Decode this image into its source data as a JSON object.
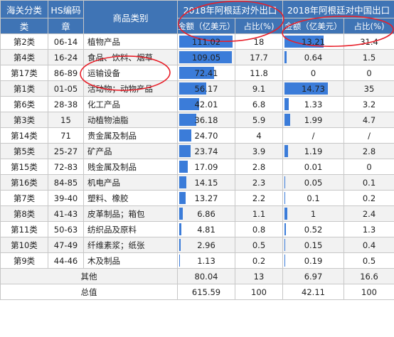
{
  "headers": {
    "category_l1": "海关分类",
    "category_l2": "类",
    "hs_l1": "HS编码",
    "hs_l2": "章",
    "goods": "商品类别",
    "group_export_world": "2018年阿根廷对外出口",
    "group_export_china": "2018年阿根廷对中国出口",
    "amount": "金额（亿美元）",
    "share": "占比(%)"
  },
  "rows": [
    {
      "cls": "第2类",
      "hs": "06-14",
      "goods": "植物产品",
      "world_amount": "111.02",
      "world_val": 111.02,
      "world_share": "18",
      "china_amount": "13.21",
      "china_val": 13.21,
      "china_share": "31.4"
    },
    {
      "cls": "第4类",
      "hs": "16-24",
      "goods": "食品、饮料、烟草",
      "world_amount": "109.05",
      "world_val": 109.05,
      "world_share": "17.7",
      "china_amount": "0.64",
      "china_val": 0.64,
      "china_share": "1.5"
    },
    {
      "cls": "第17类",
      "hs": "86-89",
      "goods": "运输设备",
      "world_amount": "72.41",
      "world_val": 72.41,
      "world_share": "11.8",
      "china_amount": "0",
      "china_val": 0,
      "china_share": "0"
    },
    {
      "cls": "第1类",
      "hs": "01-05",
      "goods": "活动物；动物产品",
      "world_amount": "56.17",
      "world_val": 56.17,
      "world_share": "9.1",
      "china_amount": "14.73",
      "china_val": 14.73,
      "china_share": "35"
    },
    {
      "cls": "第6类",
      "hs": "28-38",
      "goods": "化工产品",
      "world_amount": "42.01",
      "world_val": 42.01,
      "world_share": "6.8",
      "china_amount": "1.33",
      "china_val": 1.33,
      "china_share": "3.2"
    },
    {
      "cls": "第3类",
      "hs": "15",
      "goods": "动植物油脂",
      "world_amount": "36.18",
      "world_val": 36.18,
      "world_share": "5.9",
      "china_amount": "1.99",
      "china_val": 1.99,
      "china_share": "4.7"
    },
    {
      "cls": "第14类",
      "hs": "71",
      "goods": "贵金属及制品",
      "world_amount": "24.70",
      "world_val": 24.7,
      "world_share": "4",
      "china_amount": "/",
      "china_val": 0,
      "china_share": "/"
    },
    {
      "cls": "第5类",
      "hs": "25-27",
      "goods": "矿产品",
      "world_amount": "23.74",
      "world_val": 23.74,
      "world_share": "3.9",
      "china_amount": "1.19",
      "china_val": 1.19,
      "china_share": "2.8"
    },
    {
      "cls": "第15类",
      "hs": "72-83",
      "goods": "贱金属及制品",
      "world_amount": "17.09",
      "world_val": 17.09,
      "world_share": "2.8",
      "china_amount": "0.01",
      "china_val": 0.01,
      "china_share": "0"
    },
    {
      "cls": "第16类",
      "hs": "84-85",
      "goods": "机电产品",
      "world_amount": "14.15",
      "world_val": 14.15,
      "world_share": "2.3",
      "china_amount": "0.05",
      "china_val": 0.05,
      "china_share": "0.1"
    },
    {
      "cls": "第7类",
      "hs": "39-40",
      "goods": "塑料、橡胶",
      "world_amount": "13.27",
      "world_val": 13.27,
      "world_share": "2.2",
      "china_amount": "0.1",
      "china_val": 0.1,
      "china_share": "0.2"
    },
    {
      "cls": "第8类",
      "hs": "41-43",
      "goods": "皮革制品；箱包",
      "world_amount": "6.86",
      "world_val": 6.86,
      "world_share": "1.1",
      "china_amount": "1",
      "china_val": 1,
      "china_share": "2.4"
    },
    {
      "cls": "第11类",
      "hs": "50-63",
      "goods": "纺织品及原料",
      "world_amount": "4.81",
      "world_val": 4.81,
      "world_share": "0.8",
      "china_amount": "0.52",
      "china_val": 0.52,
      "china_share": "1.3"
    },
    {
      "cls": "第10类",
      "hs": "47-49",
      "goods": "纤维素浆；纸张",
      "world_amount": "2.96",
      "world_val": 2.96,
      "world_share": "0.5",
      "china_amount": "0.15",
      "china_val": 0.15,
      "china_share": "0.4"
    },
    {
      "cls": "第9类",
      "hs": "44-46",
      "goods": "木及制品",
      "world_amount": "1.13",
      "world_val": 1.13,
      "world_share": "0.2",
      "china_amount": "0.19",
      "china_val": 0.19,
      "china_share": "0.5"
    }
  ],
  "other": {
    "label": "其他",
    "world_amount": "80.04",
    "world_share": "13",
    "china_amount": "6.97",
    "china_share": "16.6"
  },
  "total": {
    "label": "总值",
    "world_amount": "615.59",
    "world_share": "100",
    "china_amount": "42.11",
    "china_share": "100"
  },
  "bar_scale": {
    "world_max": 111.02,
    "china_max": 14.73
  },
  "colors": {
    "header_bg": "#3f74b5",
    "bar": "#3b7cd9",
    "annotation": "#e8202a"
  }
}
